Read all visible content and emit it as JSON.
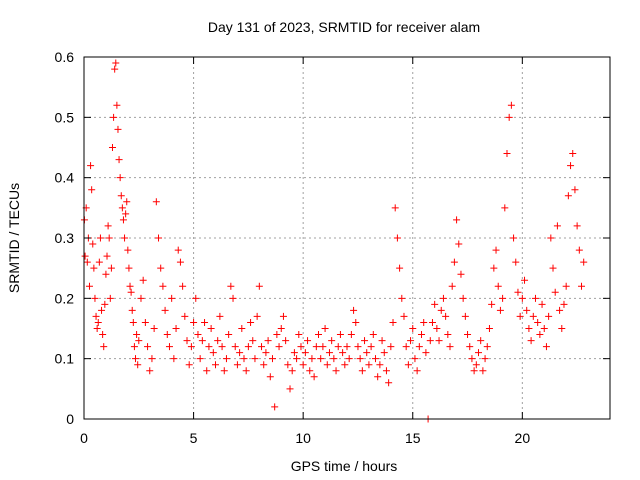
{
  "chart_data": {
    "type": "scatter",
    "title": "Day 131 of 2023, SRMTID for receiver alam",
    "xlabel": "GPS time / hours",
    "ylabel": "SRMTID / TECUs",
    "xlim": [
      0,
      24
    ],
    "ylim": [
      0,
      0.6
    ],
    "x_ticks": [
      0,
      5,
      10,
      15,
      20
    ],
    "x_tick_labels": [
      "0",
      "5",
      "10",
      "15",
      "20"
    ],
    "y_ticks": [
      0,
      0.1,
      0.2,
      0.3,
      0.4,
      0.5,
      0.6
    ],
    "y_tick_labels": [
      "0",
      "0.1",
      "0.2",
      "0.3",
      "0.4",
      "0.5",
      "0.6"
    ],
    "grid": true,
    "marker": "+",
    "color": "#ff0000",
    "series": [
      {
        "name": "SRMTID",
        "points": [
          [
            0.02,
            0.33
          ],
          [
            0.05,
            0.27
          ],
          [
            0.1,
            0.35
          ],
          [
            0.15,
            0.26
          ],
          [
            0.2,
            0.3
          ],
          [
            0.25,
            0.22
          ],
          [
            0.3,
            0.42
          ],
          [
            0.35,
            0.38
          ],
          [
            0.4,
            0.29
          ],
          [
            0.45,
            0.25
          ],
          [
            0.5,
            0.2
          ],
          [
            0.55,
            0.17
          ],
          [
            0.6,
            0.15
          ],
          [
            0.65,
            0.16
          ],
          [
            0.7,
            0.26
          ],
          [
            0.75,
            0.3
          ],
          [
            0.8,
            0.18
          ],
          [
            0.85,
            0.14
          ],
          [
            0.9,
            0.12
          ],
          [
            0.95,
            0.19
          ],
          [
            1.0,
            0.24
          ],
          [
            1.05,
            0.27
          ],
          [
            1.1,
            0.32
          ],
          [
            1.15,
            0.3
          ],
          [
            1.2,
            0.2
          ],
          [
            1.25,
            0.25
          ],
          [
            1.3,
            0.45
          ],
          [
            1.35,
            0.5
          ],
          [
            1.4,
            0.58
          ],
          [
            1.45,
            0.59
          ],
          [
            1.5,
            0.52
          ],
          [
            1.55,
            0.48
          ],
          [
            1.6,
            0.43
          ],
          [
            1.65,
            0.4
          ],
          [
            1.7,
            0.37
          ],
          [
            1.75,
            0.35
          ],
          [
            1.8,
            0.33
          ],
          [
            1.85,
            0.3
          ],
          [
            1.9,
            0.34
          ],
          [
            1.95,
            0.36
          ],
          [
            2.0,
            0.28
          ],
          [
            2.05,
            0.25
          ],
          [
            2.1,
            0.22
          ],
          [
            2.15,
            0.21
          ],
          [
            2.2,
            0.18
          ],
          [
            2.25,
            0.16
          ],
          [
            2.3,
            0.12
          ],
          [
            2.35,
            0.1
          ],
          [
            2.4,
            0.14
          ],
          [
            2.45,
            0.09
          ],
          [
            2.5,
            0.13
          ],
          [
            2.6,
            0.2
          ],
          [
            2.7,
            0.23
          ],
          [
            2.8,
            0.16
          ],
          [
            2.9,
            0.12
          ],
          [
            3.0,
            0.08
          ],
          [
            3.1,
            0.1
          ],
          [
            3.2,
            0.15
          ],
          [
            3.3,
            0.36
          ],
          [
            3.4,
            0.3
          ],
          [
            3.5,
            0.25
          ],
          [
            3.6,
            0.22
          ],
          [
            3.7,
            0.18
          ],
          [
            3.8,
            0.14
          ],
          [
            3.9,
            0.12
          ],
          [
            4.0,
            0.2
          ],
          [
            4.1,
            0.1
          ],
          [
            4.2,
            0.15
          ],
          [
            4.3,
            0.28
          ],
          [
            4.4,
            0.26
          ],
          [
            4.5,
            0.22
          ],
          [
            4.6,
            0.17
          ],
          [
            4.7,
            0.13
          ],
          [
            4.8,
            0.09
          ],
          [
            4.9,
            0.12
          ],
          [
            5.0,
            0.16
          ],
          [
            5.1,
            0.2
          ],
          [
            5.2,
            0.14
          ],
          [
            5.3,
            0.1
          ],
          [
            5.4,
            0.13
          ],
          [
            5.5,
            0.16
          ],
          [
            5.6,
            0.08
          ],
          [
            5.7,
            0.12
          ],
          [
            5.8,
            0.15
          ],
          [
            5.9,
            0.11
          ],
          [
            6.0,
            0.09
          ],
          [
            6.1,
            0.13
          ],
          [
            6.2,
            0.17
          ],
          [
            6.3,
            0.12
          ],
          [
            6.4,
            0.08
          ],
          [
            6.5,
            0.1
          ],
          [
            6.6,
            0.14
          ],
          [
            6.7,
            0.22
          ],
          [
            6.8,
            0.2
          ],
          [
            6.9,
            0.12
          ],
          [
            7.0,
            0.09
          ],
          [
            7.1,
            0.11
          ],
          [
            7.2,
            0.15
          ],
          [
            7.3,
            0.1
          ],
          [
            7.4,
            0.08
          ],
          [
            7.5,
            0.12
          ],
          [
            7.6,
            0.16
          ],
          [
            7.7,
            0.13
          ],
          [
            7.8,
            0.1
          ],
          [
            7.9,
            0.17
          ],
          [
            8.0,
            0.22
          ],
          [
            8.1,
            0.12
          ],
          [
            8.2,
            0.09
          ],
          [
            8.3,
            0.11
          ],
          [
            8.4,
            0.13
          ],
          [
            8.5,
            0.07
          ],
          [
            8.6,
            0.1
          ],
          [
            8.7,
            0.02
          ],
          [
            8.8,
            0.14
          ],
          [
            8.9,
            0.12
          ],
          [
            9.0,
            0.15
          ],
          [
            9.1,
            0.17
          ],
          [
            9.2,
            0.13
          ],
          [
            9.3,
            0.09
          ],
          [
            9.4,
            0.05
          ],
          [
            9.5,
            0.08
          ],
          [
            9.6,
            0.11
          ],
          [
            9.7,
            0.1
          ],
          [
            9.8,
            0.14
          ],
          [
            9.9,
            0.12
          ],
          [
            10.0,
            0.09
          ],
          [
            10.1,
            0.11
          ],
          [
            10.2,
            0.13
          ],
          [
            10.3,
            0.08
          ],
          [
            10.4,
            0.1
          ],
          [
            10.5,
            0.07
          ],
          [
            10.6,
            0.12
          ],
          [
            10.7,
            0.14
          ],
          [
            10.8,
            0.1
          ],
          [
            10.9,
            0.12
          ],
          [
            11.0,
            0.15
          ],
          [
            11.1,
            0.09
          ],
          [
            11.2,
            0.11
          ],
          [
            11.3,
            0.13
          ],
          [
            11.4,
            0.1
          ],
          [
            11.5,
            0.08
          ],
          [
            11.6,
            0.12
          ],
          [
            11.7,
            0.14
          ],
          [
            11.8,
            0.11
          ],
          [
            11.9,
            0.09
          ],
          [
            12.0,
            0.12
          ],
          [
            12.1,
            0.1
          ],
          [
            12.2,
            0.14
          ],
          [
            12.3,
            0.18
          ],
          [
            12.4,
            0.16
          ],
          [
            12.5,
            0.12
          ],
          [
            12.6,
            0.1
          ],
          [
            12.7,
            0.08
          ],
          [
            12.8,
            0.13
          ],
          [
            12.9,
            0.11
          ],
          [
            13.0,
            0.09
          ],
          [
            13.1,
            0.12
          ],
          [
            13.2,
            0.14
          ],
          [
            13.3,
            0.1
          ],
          [
            13.4,
            0.07
          ],
          [
            13.5,
            0.09
          ],
          [
            13.6,
            0.13
          ],
          [
            13.7,
            0.11
          ],
          [
            13.8,
            0.08
          ],
          [
            13.9,
            0.06
          ],
          [
            14.0,
            0.12
          ],
          [
            14.1,
            0.16
          ],
          [
            14.2,
            0.35
          ],
          [
            14.3,
            0.3
          ],
          [
            14.4,
            0.25
          ],
          [
            14.5,
            0.2
          ],
          [
            14.6,
            0.17
          ],
          [
            14.7,
            0.12
          ],
          [
            14.8,
            0.09
          ],
          [
            14.9,
            0.13
          ],
          [
            15.0,
            0.15
          ],
          [
            15.1,
            0.1
          ],
          [
            15.2,
            0.08
          ],
          [
            15.3,
            0.12
          ],
          [
            15.4,
            0.14
          ],
          [
            15.5,
            0.16
          ],
          [
            15.6,
            0.11
          ],
          [
            15.7,
            0.0
          ],
          [
            15.8,
            0.13
          ],
          [
            15.9,
            0.16
          ],
          [
            16.0,
            0.19
          ],
          [
            16.1,
            0.15
          ],
          [
            16.2,
            0.13
          ],
          [
            16.3,
            0.18
          ],
          [
            16.4,
            0.2
          ],
          [
            16.5,
            0.17
          ],
          [
            16.6,
            0.14
          ],
          [
            16.7,
            0.12
          ],
          [
            16.8,
            0.22
          ],
          [
            16.9,
            0.26
          ],
          [
            17.0,
            0.33
          ],
          [
            17.1,
            0.29
          ],
          [
            17.2,
            0.24
          ],
          [
            17.3,
            0.2
          ],
          [
            17.4,
            0.17
          ],
          [
            17.5,
            0.14
          ],
          [
            17.6,
            0.12
          ],
          [
            17.7,
            0.1
          ],
          [
            17.8,
            0.08
          ],
          [
            17.9,
            0.09
          ],
          [
            18.0,
            0.11
          ],
          [
            18.1,
            0.13
          ],
          [
            18.2,
            0.08
          ],
          [
            18.3,
            0.1
          ],
          [
            18.4,
            0.12
          ],
          [
            18.5,
            0.15
          ],
          [
            18.6,
            0.19
          ],
          [
            18.7,
            0.25
          ],
          [
            18.8,
            0.28
          ],
          [
            18.9,
            0.22
          ],
          [
            19.0,
            0.18
          ],
          [
            19.1,
            0.2
          ],
          [
            19.2,
            0.35
          ],
          [
            19.3,
            0.44
          ],
          [
            19.4,
            0.5
          ],
          [
            19.5,
            0.52
          ],
          [
            19.6,
            0.3
          ],
          [
            19.7,
            0.26
          ],
          [
            19.8,
            0.21
          ],
          [
            19.9,
            0.17
          ],
          [
            20.0,
            0.2
          ],
          [
            20.1,
            0.23
          ],
          [
            20.2,
            0.18
          ],
          [
            20.3,
            0.15
          ],
          [
            20.4,
            0.13
          ],
          [
            20.5,
            0.17
          ],
          [
            20.6,
            0.2
          ],
          [
            20.7,
            0.16
          ],
          [
            20.8,
            0.14
          ],
          [
            20.9,
            0.19
          ],
          [
            21.0,
            0.15
          ],
          [
            21.1,
            0.12
          ],
          [
            21.2,
            0.17
          ],
          [
            21.3,
            0.3
          ],
          [
            21.4,
            0.25
          ],
          [
            21.5,
            0.21
          ],
          [
            21.6,
            0.32
          ],
          [
            21.7,
            0.18
          ],
          [
            21.8,
            0.15
          ],
          [
            21.9,
            0.19
          ],
          [
            22.0,
            0.22
          ],
          [
            22.1,
            0.37
          ],
          [
            22.2,
            0.42
          ],
          [
            22.3,
            0.44
          ],
          [
            22.4,
            0.38
          ],
          [
            22.5,
            0.32
          ],
          [
            22.6,
            0.28
          ],
          [
            22.7,
            0.22
          ],
          [
            22.8,
            0.26
          ]
        ]
      }
    ]
  }
}
